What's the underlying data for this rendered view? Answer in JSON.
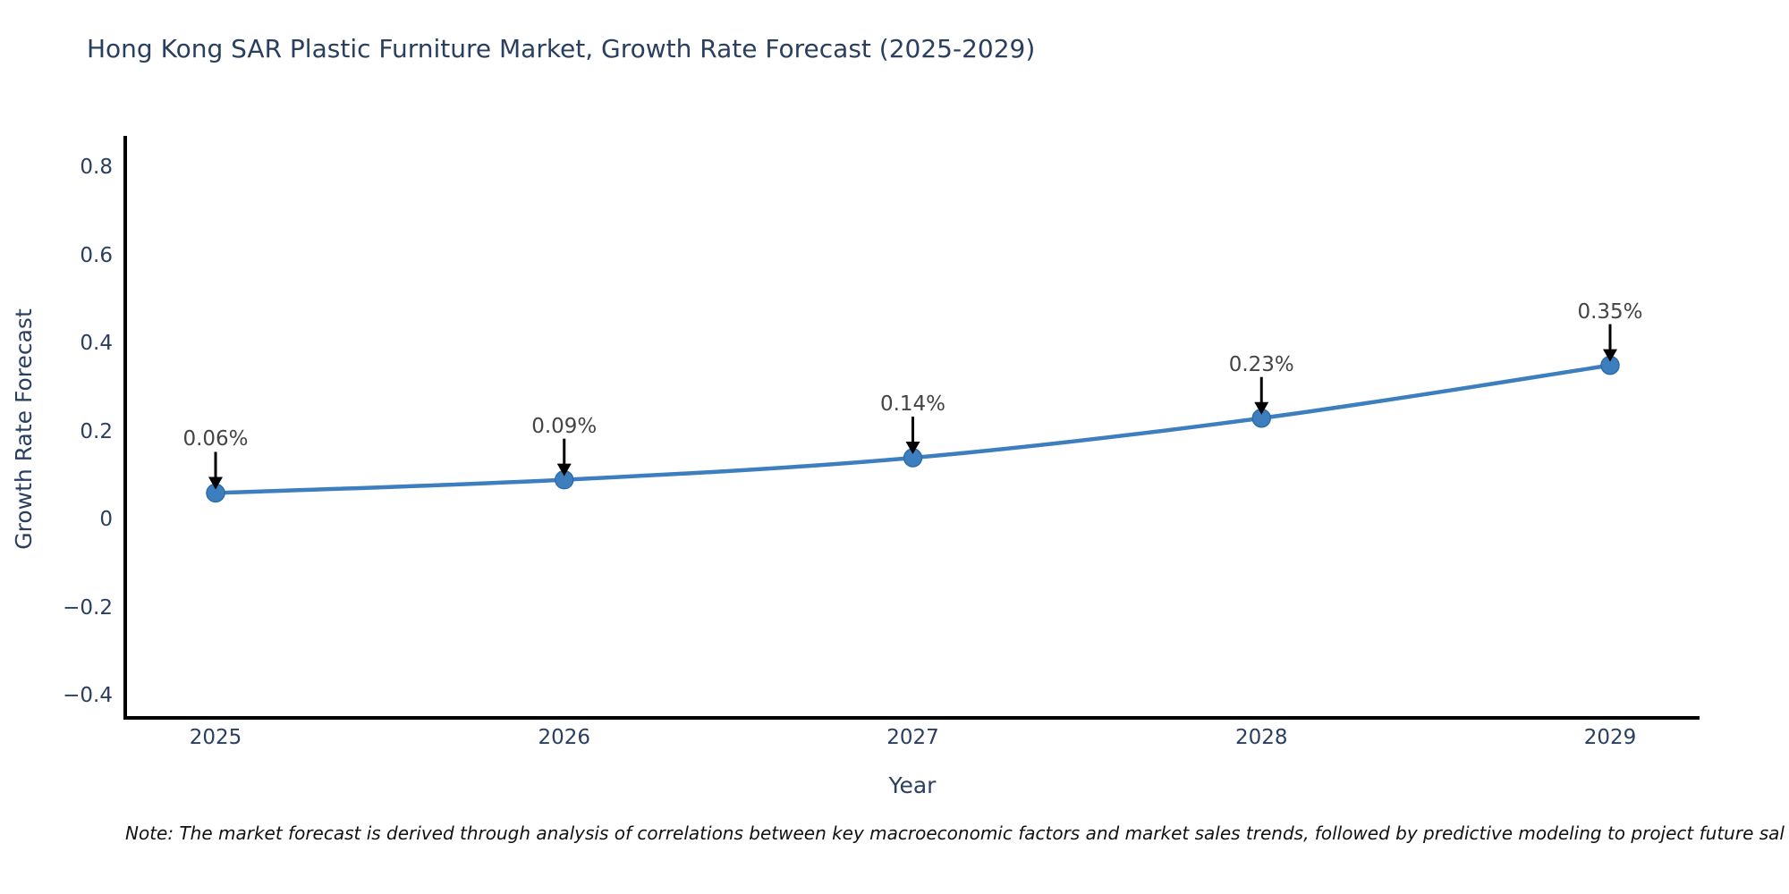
{
  "title": "Hong Kong SAR Plastic Furniture Market, Growth Rate Forecast (2025-2029)",
  "note": "Note: The market forecast is derived through analysis of correlations between key macroeconomic factors and market sales trends, followed by predictive modeling to project future sales.",
  "chart_data": {
    "type": "line",
    "title": "Hong Kong SAR Plastic Furniture Market, Growth Rate Forecast (2025-2029)",
    "xlabel": "Year",
    "ylabel": "Growth Rate Forecast",
    "categories": [
      "2025",
      "2026",
      "2027",
      "2028",
      "2029"
    ],
    "values": [
      0.06,
      0.09,
      0.14,
      0.23,
      0.35
    ],
    "point_labels": [
      "0.06%",
      "0.09%",
      "0.14%",
      "0.23%",
      "0.35%"
    ],
    "yticks": [
      "0.8",
      "0.6",
      "0.4",
      "0.2",
      "0",
      "−0.2",
      "−0.4"
    ],
    "ytick_values": [
      0.8,
      0.6,
      0.4,
      0.2,
      0,
      -0.2,
      -0.4
    ],
    "ylim": [
      -0.5,
      0.85
    ],
    "grid": false,
    "legend_position": "none",
    "line_color": "#3d7ebf",
    "marker_color": "#3d7ebf",
    "marker_edge_color": "#2e6da4",
    "axis_line_color": "#000000",
    "arrow_color": "#000000",
    "annotation_text_color": "#444444",
    "text_color": "#2a3f5f"
  }
}
